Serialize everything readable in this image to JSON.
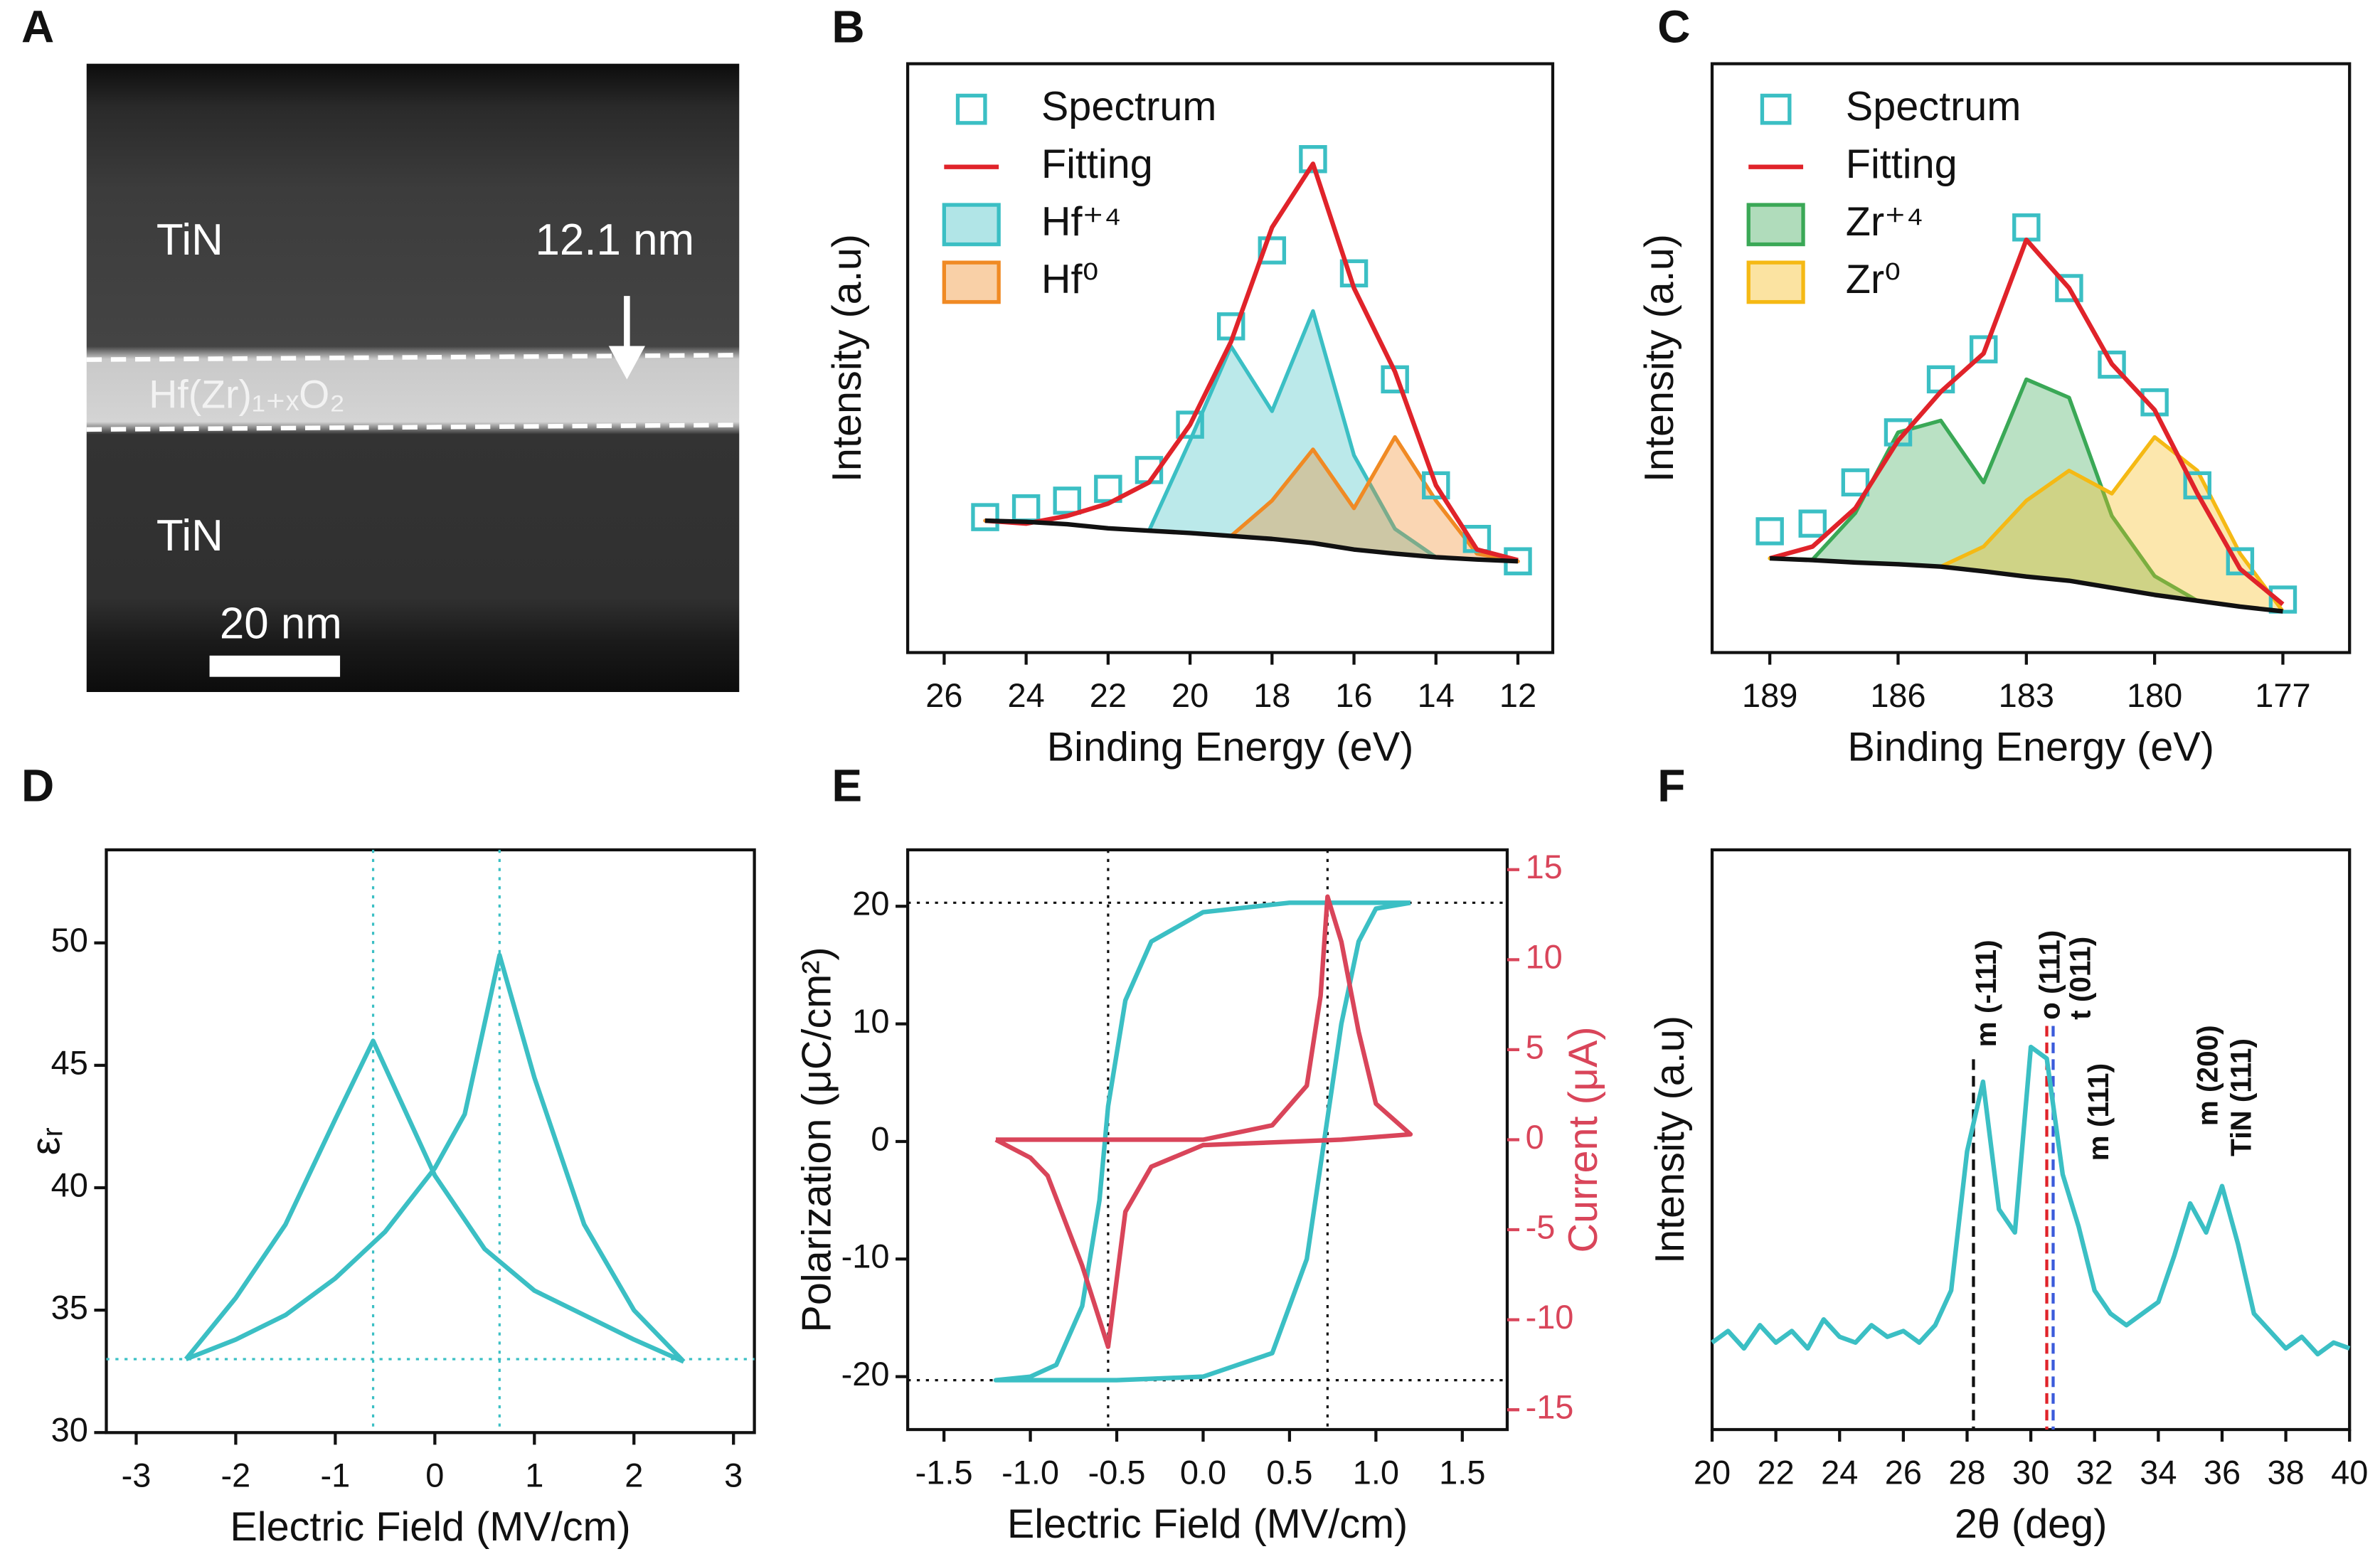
{
  "chart_data": [
    {
      "type": "image",
      "panel": "A",
      "labels": [
        "TiN",
        "12.1 nm",
        "Hf(Zr)₁₊ₓO₂",
        "TiN",
        "20 nm"
      ]
    },
    {
      "type": "area",
      "panel": "B",
      "xlabel": "Binding Energy (eV)",
      "ylabel": "Intensity (a.u)",
      "xlim": [
        26.89,
        11.15
      ],
      "xticks": [
        26,
        24,
        22,
        20,
        18,
        16,
        14,
        12
      ],
      "ylim": [
        0,
        100
      ],
      "legend": "upper left",
      "x": [
        25,
        24,
        23,
        22,
        21,
        20,
        19,
        18,
        17,
        16,
        15,
        14,
        13,
        12
      ],
      "series": [
        {
          "name": "Spectrum",
          "kind": "markers",
          "color": "#3bbfc4",
          "values": [
            23,
            24.5,
            25.8,
            27.8,
            31,
            38.7,
            55.4,
            68.3,
            83.8,
            64.4,
            46.4,
            28.4,
            19.3,
            15.5
          ]
        },
        {
          "name": "Fitting",
          "kind": "line",
          "color": "#e0232a",
          "values": [
            22.4,
            21.9,
            23.2,
            25.3,
            28.9,
            38.7,
            52.8,
            72.2,
            83,
            61.9,
            47.7,
            28.4,
            17.5,
            15.7
          ]
        },
        {
          "name": "Hf⁺⁴",
          "kind": "area",
          "color": "#3bbfc4",
          "fill_to": 4,
          "values": [
            22.4,
            22.2,
            21.8,
            21.1,
            20.7,
            36,
            52,
            41,
            58,
            33.5,
            21,
            16.2,
            15.8,
            15.5
          ]
        },
        {
          "name": "Hf⁰",
          "kind": "area",
          "color": "#f08a24",
          "fill_to": 4,
          "values": [
            22.4,
            22.2,
            21.8,
            21.1,
            20.7,
            20.3,
            19.8,
            25.8,
            34.5,
            24.5,
            36.6,
            25.8,
            16.8,
            15.5
          ]
        },
        {
          "kind": "line",
          "color": "#111111",
          "values": [
            22.4,
            22.2,
            21.8,
            21.1,
            20.7,
            20.3,
            19.8,
            19.3,
            18.6,
            17.5,
            16.8,
            16.2,
            15.8,
            15.5
          ]
        }
      ]
    },
    {
      "type": "area",
      "panel": "C",
      "xlabel": "Binding Energy (eV)",
      "ylabel": "Intensity (a.u)",
      "xlim": [
        190.35,
        175.44
      ],
      "xticks": [
        189,
        186,
        183,
        180,
        177
      ],
      "ylim": [
        0,
        100
      ],
      "legend": "upper left",
      "x": [
        189,
        188,
        187,
        186,
        185,
        184,
        183,
        182,
        181,
        180,
        179,
        178,
        177
      ],
      "series": [
        {
          "name": "Spectrum",
          "kind": "markers",
          "color": "#3bbfc4",
          "values": [
            20.6,
            21.9,
            28.9,
            37.4,
            46.4,
            51.5,
            72.2,
            61.9,
            48.9,
            42.5,
            28.4,
            15.5,
            9
          ]
        },
        {
          "name": "Fitting",
          "kind": "line",
          "color": "#e0232a",
          "values": [
            16,
            18,
            24.5,
            36,
            44.3,
            50.8,
            70.1,
            61.9,
            49,
            41.2,
            27,
            14.2,
            8.2
          ]
        },
        {
          "name": "Zr⁺⁴",
          "kind": "area",
          "color": "#3aa856",
          "fill_to": 4,
          "values": [
            16,
            15.8,
            23.7,
            37.4,
            39.4,
            28.9,
            46.4,
            43.3,
            23.2,
            13,
            8.8,
            7.8,
            7
          ]
        },
        {
          "name": "Zr⁰",
          "kind": "area",
          "color": "#f5b914",
          "fill_to": 4,
          "values": [
            16,
            15.7,
            15.3,
            15,
            14.6,
            18,
            25.8,
            30.9,
            27,
            36.6,
            30.9,
            16.8,
            7
          ]
        },
        {
          "kind": "line",
          "color": "#111111",
          "values": [
            16,
            15.7,
            15.3,
            15,
            14.6,
            13.8,
            12.9,
            12.2,
            11,
            9.8,
            8.8,
            7.8,
            7
          ]
        }
      ]
    },
    {
      "type": "line",
      "panel": "D",
      "xlabel": "Electric Field (MV/cm)",
      "ylabel": "εᵣ",
      "xlim": [
        -3.3,
        3.21
      ],
      "xticks": [
        -3,
        -2,
        -1,
        0,
        1,
        2,
        3
      ],
      "ylim": [
        30,
        53.8
      ],
      "yticks": [
        30,
        35,
        40,
        45,
        50
      ],
      "guides": {
        "color": "#3bbfc4",
        "x": [
          -0.62,
          0.65
        ],
        "y": [
          33
        ]
      },
      "series": [
        {
          "kind": "line",
          "color": "#3bbfc4",
          "x": [
            -2.5,
            -2,
            -1.5,
            -1,
            -0.5,
            0,
            0.3,
            0.65,
            1,
            1.5,
            2,
            2.5
          ],
          "values": [
            33,
            33.8,
            34.8,
            36.3,
            38.2,
            40.8,
            43,
            49.5,
            44.5,
            38.5,
            35,
            32.9
          ]
        },
        {
          "kind": "line",
          "color": "#3bbfc4",
          "x": [
            -2.5,
            -2,
            -1.5,
            -1,
            -0.62,
            0,
            0.5,
            1,
            1.5,
            2,
            2.5
          ],
          "values": [
            33,
            35.5,
            38.5,
            42.8,
            46,
            40.5,
            37.5,
            35.8,
            34.8,
            33.8,
            32.9
          ]
        }
      ]
    },
    {
      "type": "line",
      "panel": "E",
      "xlabel": "Electric Field (MV/cm)",
      "ylabel": "Polarization (μC/cm²)",
      "y2label": "Current (μA)",
      "xlim": [
        -1.71,
        1.76
      ],
      "xticks": [
        -1.5,
        {
          "value": -1,
          "label": "-1.0"
        },
        -0.5,
        {
          "value": 0,
          "label": "0.0"
        },
        0.5,
        {
          "value": 1,
          "label": "1.0"
        },
        1.5
      ],
      "ylim": [
        -24.5,
        24.8
      ],
      "yticks": [
        -20,
        -10,
        0,
        10,
        20
      ],
      "y2lim": [
        -16.1,
        16.1
      ],
      "y2ticks": [
        -15,
        -10,
        -5,
        0,
        5,
        10,
        15
      ],
      "guides": {
        "color": "#111111",
        "x": [
          -0.55,
          0.72
        ],
        "y": [
          20.3,
          -20.3
        ]
      },
      "series": [
        {
          "kind": "line",
          "color": "#3bbfc4",
          "x": [
            1.2,
            0.5,
            0,
            -0.3,
            -0.45,
            -0.55,
            -0.6,
            -0.7,
            -0.85,
            -1,
            -1.2,
            -0.5,
            0,
            0.4,
            0.6,
            0.7,
            0.8,
            0.9,
            1,
            1.2
          ],
          "values": [
            20.3,
            20.3,
            19.5,
            17,
            12,
            3,
            -5,
            -14,
            -19,
            -20,
            -20.3,
            -20.3,
            -20,
            -18,
            -10,
            0,
            10,
            17,
            19.8,
            20.3
          ]
        },
        {
          "kind": "line",
          "color": "#d9455a",
          "axis": "y2",
          "x": [
            -1.2,
            -0.6,
            0,
            0.4,
            0.6,
            0.68,
            0.72,
            0.8,
            0.9,
            1,
            1.2,
            0.8,
            0,
            -0.3,
            -0.45,
            -0.55,
            -0.7,
            -0.9,
            -1,
            -1.2
          ],
          "values": [
            0,
            0,
            0,
            0.8,
            3,
            8,
            13.5,
            11,
            6,
            2,
            0.3,
            0,
            -0.3,
            -1.5,
            -4,
            -11.5,
            -7,
            -2,
            -1,
            0
          ]
        }
      ]
    },
    {
      "type": "line",
      "panel": "F",
      "xlabel": "2θ (deg)",
      "ylabel": "Intensity (a.u)",
      "xlim": [
        20,
        40
      ],
      "xticks": [
        20,
        22,
        24,
        26,
        28,
        30,
        32,
        34,
        36,
        38,
        40
      ],
      "ylim": [
        0,
        100
      ],
      "ref_lines": [
        {
          "x": 28.2,
          "color": "#111111"
        },
        {
          "x": 30.5,
          "color": "#e0232a"
        },
        {
          "x": 30.7,
          "color": "#3b5bdb"
        }
      ],
      "peak_labels": [
        "m (-111)",
        "o (111)",
        "t (011)",
        "m (111)",
        "m (200)",
        "TiN (111)"
      ],
      "series": [
        {
          "kind": "line",
          "color": "#3bbfc4",
          "x": [
            20,
            20.5,
            21,
            21.5,
            22,
            22.5,
            23,
            23.5,
            24,
            24.5,
            25,
            25.5,
            26,
            26.5,
            27,
            27.5,
            28,
            28.5,
            29,
            29.5,
            30,
            30.5,
            31,
            31.5,
            32,
            32.5,
            33,
            33.5,
            34,
            34.5,
            35,
            35.5,
            36,
            36.5,
            37,
            37.5,
            38,
            38.5,
            39,
            39.5,
            40
          ],
          "values": [
            15,
            17,
            14,
            18,
            15,
            17,
            14,
            19,
            16,
            15,
            18,
            16,
            17,
            15,
            18,
            24,
            48,
            60,
            38,
            34,
            66,
            64,
            44,
            35,
            24,
            20,
            18,
            20,
            22,
            30,
            39,
            34,
            42,
            32,
            20,
            17,
            14,
            16,
            13,
            15,
            14
          ]
        }
      ]
    }
  ]
}
